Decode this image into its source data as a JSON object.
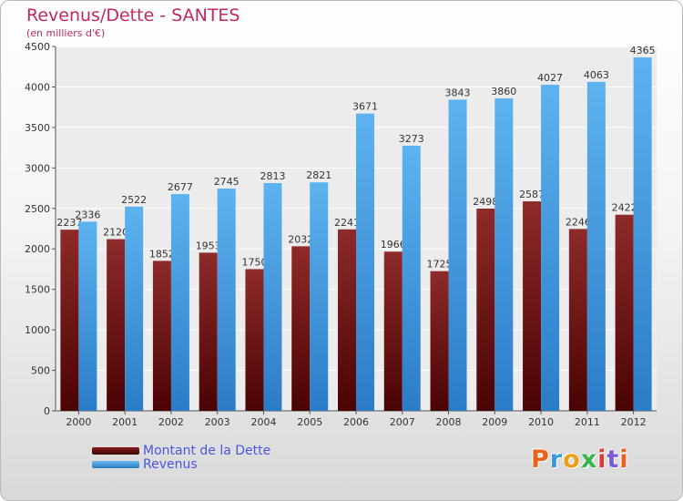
{
  "chart_data": {
    "type": "bar",
    "title": "Revenus/Dette - SANTES",
    "subtitle": "(en milliers d'€)",
    "categories": [
      "2000",
      "2001",
      "2002",
      "2003",
      "2004",
      "2005",
      "2006",
      "2007",
      "2008",
      "2009",
      "2010",
      "2011",
      "2012"
    ],
    "series": [
      {
        "name": "Montant de la Dette",
        "color": "#7a1010",
        "values": [
          2237,
          2120,
          1852,
          1953,
          1750,
          2032,
          2241,
          1966,
          1725,
          2498,
          2587,
          2246,
          2422
        ]
      },
      {
        "name": "Revenus",
        "color": "#4da6e8",
        "values": [
          2336,
          2522,
          2677,
          2745,
          2813,
          2821,
          3671,
          3273,
          3843,
          3860,
          4027,
          4063,
          4365
        ]
      }
    ],
    "ylim": [
      0,
      4500
    ],
    "yticks": [
      0,
      500,
      1000,
      1500,
      2000,
      2500,
      3000,
      3500,
      4000,
      4500
    ],
    "grid": true,
    "legend_position": "bottom-left"
  },
  "logo_text": "Proxiti",
  "logo_colors": [
    "#e8611d",
    "#3a9ad9",
    "#e8a11d",
    "#3ab54a",
    "#d93a3a",
    "#7a5ad9",
    "#e8611d"
  ]
}
